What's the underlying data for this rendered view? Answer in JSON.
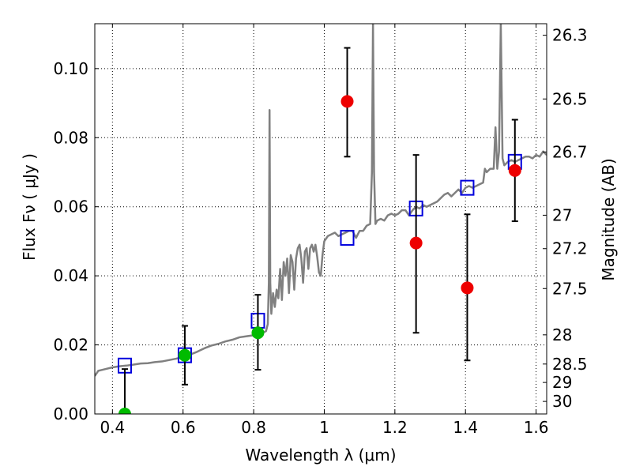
{
  "chart_data": {
    "type": "scatter",
    "title": "",
    "xlabel": "Wavelength  λ (μm)",
    "ylabel": "Flux  Fν  ( μJy )",
    "ylabel_right": "Magnitude (AB)",
    "xlim": [
      0.35,
      1.63
    ],
    "ylim": [
      0.0,
      0.113
    ],
    "grid": true,
    "x_ticks": [
      {
        "value": 0.4,
        "label": "0.4"
      },
      {
        "value": 0.6,
        "label": "0.6"
      },
      {
        "value": 0.8,
        "label": "0.8"
      },
      {
        "value": 1.0,
        "label": "1"
      },
      {
        "value": 1.2,
        "label": "1.2"
      },
      {
        "value": 1.4,
        "label": "1.4"
      },
      {
        "value": 1.6,
        "label": "1.6"
      }
    ],
    "y_ticks": [
      {
        "value": 0.0,
        "label": "0.00"
      },
      {
        "value": 0.02,
        "label": "0.02"
      },
      {
        "value": 0.04,
        "label": "0.04"
      },
      {
        "value": 0.06,
        "label": "0.06"
      },
      {
        "value": 0.08,
        "label": "0.08"
      },
      {
        "value": 0.1,
        "label": "0.10"
      }
    ],
    "mag_ticks": [
      {
        "value": 26.3,
        "label": "26.3"
      },
      {
        "value": 26.5,
        "label": "26.5"
      },
      {
        "value": 26.7,
        "label": "26.7"
      },
      {
        "value": 27.0,
        "label": "27"
      },
      {
        "value": 27.2,
        "label": "27.2"
      },
      {
        "value": 27.5,
        "label": "27.5"
      },
      {
        "value": 28.0,
        "label": "28"
      },
      {
        "value": 28.5,
        "label": "28.5"
      },
      {
        "value": 29.0,
        "label": "29"
      },
      {
        "value": 30.0,
        "label": "30"
      }
    ],
    "series": [
      {
        "kind": "line",
        "color": "#808080",
        "points": [
          [
            0.35,
            0.011
          ],
          [
            0.36,
            0.0125
          ],
          [
            0.38,
            0.013
          ],
          [
            0.4,
            0.0135
          ],
          [
            0.42,
            0.0138
          ],
          [
            0.44,
            0.014
          ],
          [
            0.46,
            0.0143
          ],
          [
            0.48,
            0.0146
          ],
          [
            0.5,
            0.0147
          ],
          [
            0.52,
            0.015
          ],
          [
            0.54,
            0.0152
          ],
          [
            0.56,
            0.0156
          ],
          [
            0.58,
            0.016
          ],
          [
            0.6,
            0.0165
          ],
          [
            0.62,
            0.0172
          ],
          [
            0.64,
            0.018
          ],
          [
            0.66,
            0.019
          ],
          [
            0.68,
            0.0198
          ],
          [
            0.7,
            0.0203
          ],
          [
            0.72,
            0.021
          ],
          [
            0.74,
            0.0215
          ],
          [
            0.76,
            0.0222
          ],
          [
            0.78,
            0.0225
          ],
          [
            0.8,
            0.0228
          ],
          [
            0.82,
            0.0232
          ],
          [
            0.835,
            0.024
          ],
          [
            0.84,
            0.026
          ],
          [
            0.843,
            0.038
          ],
          [
            0.845,
            0.088
          ],
          [
            0.847,
            0.038
          ],
          [
            0.85,
            0.029
          ],
          [
            0.855,
            0.035
          ],
          [
            0.86,
            0.031
          ],
          [
            0.865,
            0.036
          ],
          [
            0.87,
            0.0335
          ],
          [
            0.875,
            0.042
          ],
          [
            0.88,
            0.033
          ],
          [
            0.885,
            0.044
          ],
          [
            0.89,
            0.04
          ],
          [
            0.895,
            0.045
          ],
          [
            0.9,
            0.035
          ],
          [
            0.905,
            0.046
          ],
          [
            0.91,
            0.044
          ],
          [
            0.915,
            0.036
          ],
          [
            0.92,
            0.045
          ],
          [
            0.925,
            0.048
          ],
          [
            0.93,
            0.049
          ],
          [
            0.935,
            0.045
          ],
          [
            0.94,
            0.038
          ],
          [
            0.945,
            0.047
          ],
          [
            0.95,
            0.048
          ],
          [
            0.955,
            0.042
          ],
          [
            0.96,
            0.048
          ],
          [
            0.965,
            0.049
          ],
          [
            0.97,
            0.047
          ],
          [
            0.975,
            0.049
          ],
          [
            0.98,
            0.0455
          ],
          [
            0.985,
            0.041
          ],
          [
            0.99,
            0.04
          ],
          [
            0.995,
            0.046
          ],
          [
            1.0,
            0.05
          ],
          [
            1.01,
            0.0515
          ],
          [
            1.02,
            0.052
          ],
          [
            1.03,
            0.0525
          ],
          [
            1.04,
            0.0515
          ],
          [
            1.05,
            0.052
          ],
          [
            1.06,
            0.0525
          ],
          [
            1.07,
            0.053
          ],
          [
            1.08,
            0.053
          ],
          [
            1.09,
            0.051
          ],
          [
            1.1,
            0.053
          ],
          [
            1.11,
            0.053
          ],
          [
            1.12,
            0.0545
          ],
          [
            1.13,
            0.055
          ],
          [
            1.135,
            0.07
          ],
          [
            1.138,
            0.113
          ],
          [
            1.141,
            0.07
          ],
          [
            1.145,
            0.055
          ],
          [
            1.15,
            0.056
          ],
          [
            1.16,
            0.0565
          ],
          [
            1.17,
            0.056
          ],
          [
            1.18,
            0.0575
          ],
          [
            1.19,
            0.058
          ],
          [
            1.2,
            0.0575
          ],
          [
            1.21,
            0.058
          ],
          [
            1.22,
            0.059
          ],
          [
            1.23,
            0.059
          ],
          [
            1.24,
            0.0575
          ],
          [
            1.25,
            0.059
          ],
          [
            1.26,
            0.06
          ],
          [
            1.27,
            0.0595
          ],
          [
            1.28,
            0.0605
          ],
          [
            1.29,
            0.06
          ],
          [
            1.3,
            0.0605
          ],
          [
            1.31,
            0.061
          ],
          [
            1.32,
            0.0615
          ],
          [
            1.33,
            0.0625
          ],
          [
            1.34,
            0.0635
          ],
          [
            1.35,
            0.064
          ],
          [
            1.36,
            0.063
          ],
          [
            1.37,
            0.064
          ],
          [
            1.38,
            0.065
          ],
          [
            1.39,
            0.064
          ],
          [
            1.4,
            0.0655
          ],
          [
            1.41,
            0.066
          ],
          [
            1.42,
            0.0655
          ],
          [
            1.43,
            0.066
          ],
          [
            1.44,
            0.0665
          ],
          [
            1.45,
            0.067
          ],
          [
            1.455,
            0.071
          ],
          [
            1.46,
            0.07
          ],
          [
            1.47,
            0.071
          ],
          [
            1.48,
            0.071
          ],
          [
            1.485,
            0.083
          ],
          [
            1.49,
            0.071
          ],
          [
            1.495,
            0.076
          ],
          [
            1.5,
            0.113
          ],
          [
            1.505,
            0.074
          ],
          [
            1.51,
            0.072
          ],
          [
            1.52,
            0.073
          ],
          [
            1.53,
            0.0735
          ],
          [
            1.54,
            0.073
          ],
          [
            1.55,
            0.0735
          ],
          [
            1.56,
            0.074
          ],
          [
            1.57,
            0.0745
          ],
          [
            1.58,
            0.0745
          ],
          [
            1.59,
            0.074
          ],
          [
            1.6,
            0.075
          ],
          [
            1.61,
            0.0745
          ],
          [
            1.62,
            0.076
          ],
          [
            1.63,
            0.075
          ]
        ]
      },
      {
        "kind": "squares",
        "color": "#0000dd",
        "points": [
          [
            0.435,
            0.014
          ],
          [
            0.605,
            0.017
          ],
          [
            0.812,
            0.027
          ],
          [
            1.065,
            0.051
          ],
          [
            1.26,
            0.0595
          ],
          [
            1.405,
            0.0655
          ],
          [
            1.54,
            0.073
          ]
        ]
      },
      {
        "kind": "points",
        "color": "#00bb00",
        "points": [
          {
            "x": 0.435,
            "y": 0.0,
            "yerr_low": 0.0,
            "yerr_high": 0.013
          },
          {
            "x": 0.605,
            "y": 0.017,
            "yerr_low": 0.0085,
            "yerr_high": 0.0255
          },
          {
            "x": 0.812,
            "y": 0.0235,
            "yerr_low": 0.0128,
            "yerr_high": 0.0345
          }
        ]
      },
      {
        "kind": "points",
        "color": "#ee0000",
        "points": [
          {
            "x": 1.065,
            "y": 0.0905,
            "yerr_low": 0.0745,
            "yerr_high": 0.106
          },
          {
            "x": 1.26,
            "y": 0.0495,
            "yerr_low": 0.0235,
            "yerr_high": 0.075
          },
          {
            "x": 1.405,
            "y": 0.0365,
            "yerr_low": 0.0155,
            "yerr_high": 0.0578
          },
          {
            "x": 1.54,
            "y": 0.0705,
            "yerr_low": 0.0558,
            "yerr_high": 0.0852
          }
        ]
      }
    ]
  }
}
